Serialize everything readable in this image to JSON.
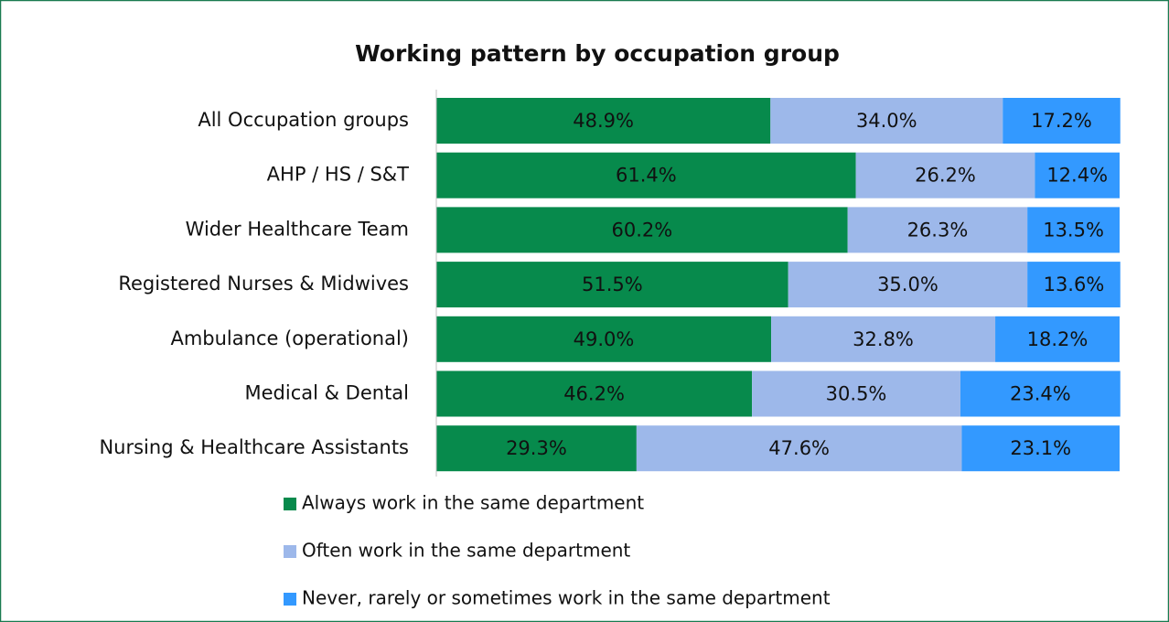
{
  "chart_data": {
    "type": "stacked-bar-horizontal",
    "title": "Working pattern by occupation group",
    "categories": [
      "All Occupation groups",
      "AHP / HS / S&T",
      "Wider Healthcare Team",
      "Registered Nurses & Midwives",
      "Ambulance (operational)",
      "Medical & Dental",
      "Nursing & Healthcare Assistants"
    ],
    "xlim": [
      0,
      100
    ],
    "series": [
      {
        "name": "Always work in the same department",
        "color": "#078a4c",
        "values": [
          48.9,
          61.4,
          60.2,
          51.5,
          49.0,
          46.2,
          29.3
        ],
        "value_labels": [
          "48.9%",
          "61.4%",
          "60.2%",
          "51.5%",
          "49.0%",
          "46.2%",
          "29.3%"
        ]
      },
      {
        "name": "Often work in the same department",
        "color": "#9db8ea",
        "values": [
          34.0,
          26.2,
          26.3,
          35.0,
          32.8,
          30.5,
          47.6
        ],
        "value_labels": [
          "34.0%",
          "26.2%",
          "26.3%",
          "35.0%",
          "32.8%",
          "30.5%",
          "47.6%"
        ]
      },
      {
        "name": "Never, rarely or sometimes work in the same department",
        "color": "#3399ff",
        "values": [
          17.2,
          12.4,
          13.5,
          13.6,
          18.2,
          23.4,
          23.1
        ],
        "value_labels": [
          "17.2%",
          "12.4%",
          "13.5%",
          "13.6%",
          "18.2%",
          "23.4%",
          "23.1%"
        ]
      }
    ],
    "legend": "bottom"
  }
}
